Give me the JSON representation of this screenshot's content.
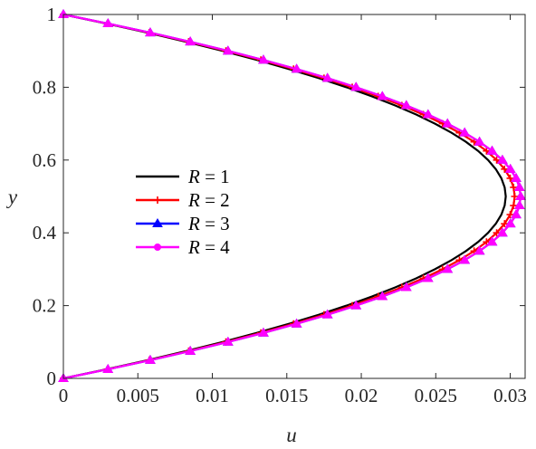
{
  "chart_data": {
    "type": "line",
    "xlabel": "u",
    "ylabel": "y",
    "xlim": [
      0,
      0.031
    ],
    "ylim": [
      0,
      1
    ],
    "xticks": [
      "0",
      "0.005",
      "0.01",
      "0.015",
      "0.02",
      "0.025",
      "0.03"
    ],
    "xtick_values": [
      0,
      0.005,
      0.01,
      0.015,
      0.02,
      0.025,
      0.03
    ],
    "yticks": [
      "0",
      "0.2",
      "0.4",
      "0.6",
      "0.8",
      "1"
    ],
    "ytick_values": [
      0,
      0.2,
      0.4,
      0.6,
      0.8,
      1
    ],
    "grid": false,
    "legend_position": "center-left",
    "series": [
      {
        "name_var": "R",
        "name_value": "= 1",
        "color": "#000000",
        "marker": "none",
        "u_max": 0.0297
      },
      {
        "name_var": "R",
        "name_value": "= 2",
        "color": "#ff0000",
        "marker": "plus",
        "u_max": 0.0303
      },
      {
        "name_var": "R",
        "name_value": "= 3",
        "color": "#0000ff",
        "marker": "triangle",
        "u_max": 0.0307
      },
      {
        "name_var": "R",
        "name_value": "= 4",
        "color": "#ff00ff",
        "marker": "triangle",
        "u_max": 0.0307
      }
    ],
    "y": [
      0,
      0.025,
      0.05,
      0.075,
      0.1,
      0.125,
      0.15,
      0.175,
      0.2,
      0.225,
      0.25,
      0.275,
      0.3,
      0.325,
      0.35,
      0.375,
      0.4,
      0.425,
      0.45,
      0.475,
      0.5,
      0.525,
      0.55,
      0.575,
      0.6,
      0.625,
      0.65,
      0.675,
      0.7,
      0.725,
      0.75,
      0.775,
      0.8,
      0.825,
      0.85,
      0.875,
      0.9,
      0.925,
      0.95,
      0.975,
      1
    ]
  }
}
